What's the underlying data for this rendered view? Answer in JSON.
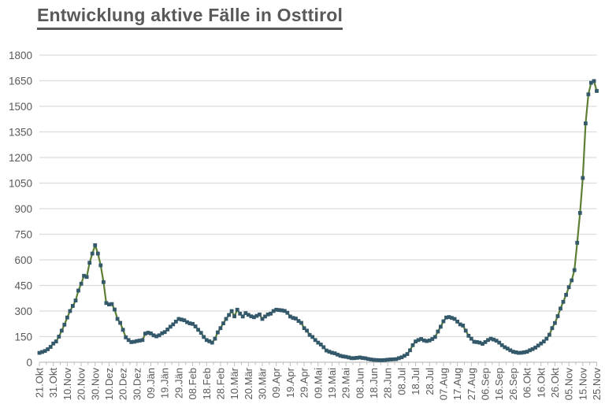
{
  "colors": {
    "background": "#ffffff",
    "grid": "#dcdcdc",
    "axis": "#bfbfbf",
    "tick_text": "#595959",
    "title_text": "#595959",
    "series_line": "#5c7f33",
    "series_marker": "#33596a"
  },
  "chart_data": {
    "type": "line",
    "title": "Entwicklung aktive Fälle in Osttirol",
    "xlabel": "",
    "ylabel": "",
    "ylim": [
      0,
      1800
    ],
    "y_ticks": [
      0,
      150,
      300,
      450,
      600,
      750,
      900,
      1050,
      1200,
      1350,
      1500,
      1650,
      1800
    ],
    "x_tick_interval_days": 10,
    "x_minor_tick_every_days": 5,
    "x_tick_labels": [
      "21.Okt",
      "31.Okt",
      "10.Nov",
      "20.Nov",
      "30.Nov",
      "10.Dez",
      "20.Dez",
      "30.Dez",
      "09.Jän",
      "19.Jän",
      "29.Jän",
      "08.Feb",
      "18.Feb",
      "28.Feb",
      "10.Mär",
      "20.Mär",
      "30.Mär",
      "09.Apr",
      "19.Apr",
      "29.Apr",
      "09.Mai",
      "19.Mai",
      "29.Mai",
      "08.Jun",
      "18.Jun",
      "28.Jun",
      "08.Jul",
      "18.Jul",
      "28.Jul",
      "07.Aug",
      "17.Aug",
      "27.Aug",
      "06.Sep",
      "16.Sep",
      "26.Sep",
      "06.Okt",
      "16.Okt",
      "26.Okt",
      "05.Nov",
      "15.Nov",
      "25.Nov"
    ],
    "grid": "horizontal-only",
    "legend": "none",
    "series": [
      {
        "name": "aktive Fälle",
        "marker": "square",
        "x_start_day": 0,
        "x_step_days": 2,
        "values": [
          55,
          60,
          66,
          76,
          90,
          110,
          122,
          150,
          185,
          220,
          262,
          300,
          330,
          362,
          420,
          460,
          507,
          500,
          583,
          637,
          686,
          637,
          568,
          470,
          347,
          339,
          341,
          309,
          254,
          231,
          190,
          146,
          130,
          118,
          120,
          124,
          127,
          130,
          168,
          173,
          169,
          158,
          152,
          158,
          170,
          177,
          192,
          208,
          222,
          238,
          254,
          250,
          246,
          235,
          228,
          225,
          210,
          190,
          172,
          148,
          130,
          123,
          115,
          138,
          175,
          200,
          228,
          254,
          277,
          300,
          269,
          308,
          285,
          268,
          288,
          278,
          269,
          264,
          272,
          280,
          254,
          268,
          280,
          285,
          300,
          308,
          306,
          304,
          301,
          290,
          268,
          260,
          256,
          242,
          231,
          200,
          185,
          160,
          148,
          130,
          115,
          104,
          88,
          69,
          62,
          56,
          52,
          45,
          38,
          34,
          32,
          28,
          24,
          24,
          26,
          28,
          25,
          23,
          19,
          16,
          14,
          13,
          12,
          12,
          13,
          15,
          16,
          17,
          18,
          24,
          29,
          38,
          48,
          70,
          100,
          122,
          130,
          136,
          128,
          124,
          128,
          136,
          148,
          180,
          208,
          240,
          262,
          265,
          260,
          254,
          238,
          222,
          215,
          185,
          155,
          138,
          120,
          118,
          115,
          108,
          118,
          130,
          138,
          133,
          126,
          115,
          100,
          88,
          80,
          70,
          62,
          58,
          55,
          56,
          58,
          62,
          70,
          77,
          86,
          98,
          110,
          122,
          138,
          161,
          200,
          230,
          270,
          315,
          354,
          395,
          440,
          480,
          540,
          700,
          875,
          1080,
          1400,
          1570,
          1638,
          1648,
          1590
        ]
      }
    ]
  }
}
